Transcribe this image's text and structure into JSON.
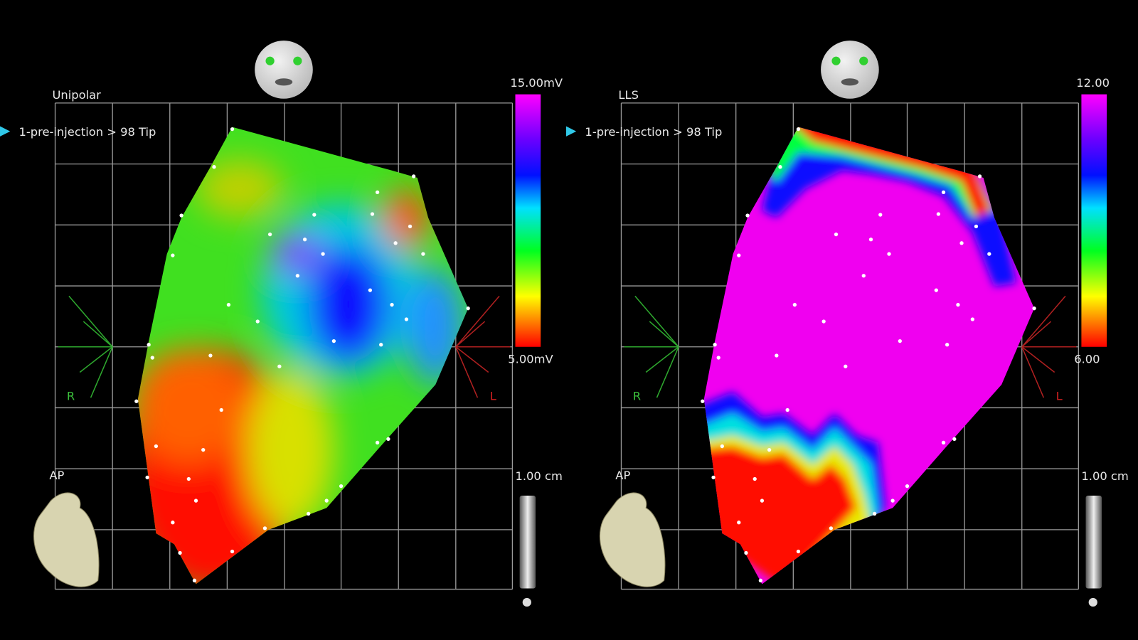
{
  "panels": [
    {
      "title": "Unipolar",
      "map_label": "1-pre-injection > 98 Tip",
      "scale_max": "15.00mV",
      "scale_min": "5.00mV",
      "r_label": "R",
      "l_label": "L",
      "view": "AP",
      "scale_length": "1.00 cm"
    },
    {
      "title": "LLS",
      "map_label": "1-pre-injection > 98 Tip",
      "scale_max": "12.00",
      "scale_min": "6.00",
      "r_label": "R",
      "l_label": "L",
      "view": "AP",
      "scale_length": "1.00 cm"
    }
  ]
}
